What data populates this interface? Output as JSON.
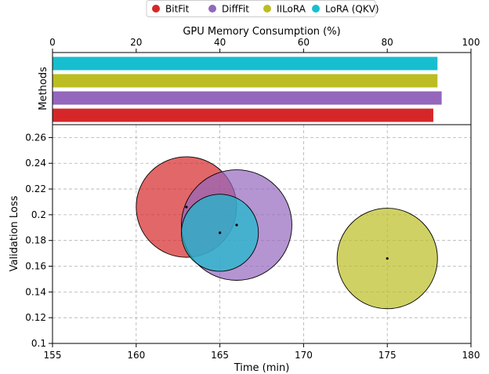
{
  "legend": {
    "items": [
      {
        "label": "BitFit",
        "color": "#d62728"
      },
      {
        "label": "DiffFit",
        "color": "#9467bd"
      },
      {
        "label": "IILoRA",
        "color": "#bcbd22"
      },
      {
        "label": "LoRA (QKV)",
        "color": "#17becf"
      }
    ]
  },
  "chart_data": [
    {
      "type": "bar",
      "orientation": "horizontal",
      "xlabel": "GPU Memory Consumption (%)",
      "ylabel": "Methods",
      "xlim": [
        0,
        100
      ],
      "x_ticks": [
        0,
        20,
        40,
        60,
        80,
        100
      ],
      "x_axis_position": "top",
      "categories": [
        "BitFit",
        "DiffFit",
        "IILoRA",
        "LoRA (QKV)"
      ],
      "values": [
        91,
        93,
        92,
        92
      ],
      "colors": [
        "#d62728",
        "#9467bd",
        "#bcbd22",
        "#17becf"
      ],
      "grid": false
    },
    {
      "type": "scatter",
      "xlabel": "Time (min)",
      "ylabel": "Validation Loss",
      "xlim": [
        155,
        180
      ],
      "ylim": [
        0.1,
        0.27
      ],
      "x_ticks": [
        155,
        160,
        165,
        170,
        175,
        180
      ],
      "y_ticks": [
        0.1,
        0.12,
        0.14,
        0.16,
        0.18,
        0.2,
        0.22,
        0.24,
        0.26
      ],
      "y_tick_labels": [
        "0.1",
        "0.12",
        "0.14",
        "0.16",
        "0.18",
        "0.2",
        "0.22",
        "0.24",
        "0.26"
      ],
      "grid": true,
      "bubble_size": "GPU memory consumption",
      "series": [
        {
          "name": "BitFit",
          "color": "#d62728",
          "points": [
            {
              "x": 163.0,
              "y": 0.206,
              "radius_in_x_units": 3.0
            }
          ]
        },
        {
          "name": "DiffFit",
          "color": "#9467bd",
          "points": [
            {
              "x": 166.0,
              "y": 0.192,
              "radius_in_x_units": 3.3
            }
          ]
        },
        {
          "name": "IILoRA",
          "color": "#bcbd22",
          "points": [
            {
              "x": 175.0,
              "y": 0.166,
              "radius_in_x_units": 3.0
            }
          ]
        },
        {
          "name": "LoRA (QKV)",
          "color": "#17becf",
          "points": [
            {
              "x": 165.0,
              "y": 0.186,
              "radius_in_x_units": 2.3
            }
          ]
        }
      ]
    }
  ]
}
